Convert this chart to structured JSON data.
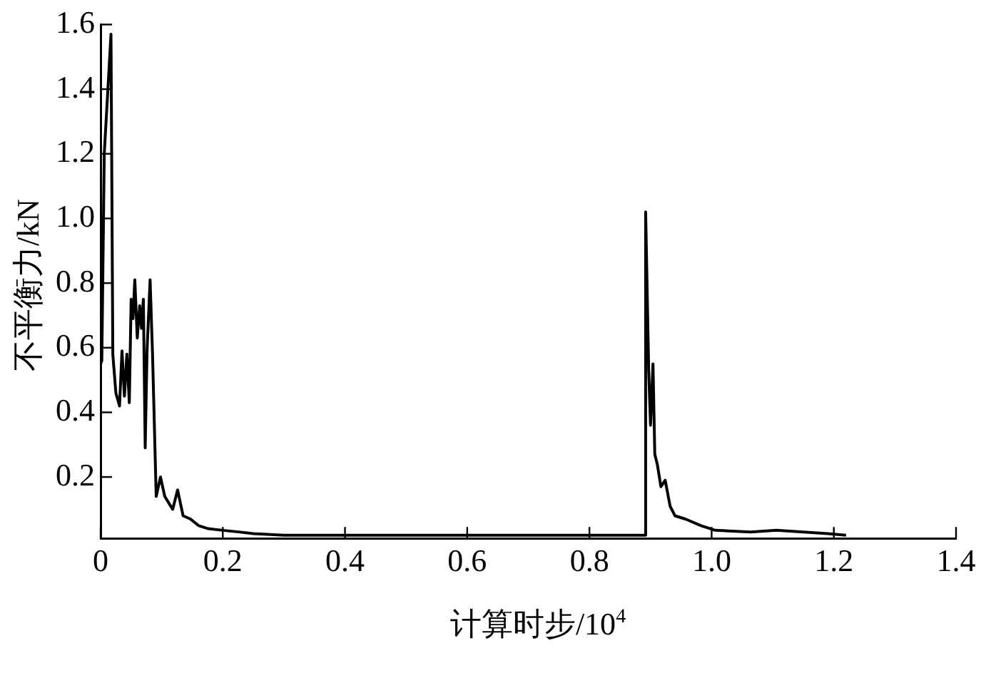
{
  "chart_data": {
    "type": "line",
    "xlabel": "计算时步/10$^{4}$",
    "ylabel": "不平衡力/kN",
    "x": [
      0,
      0.002,
      0.006,
      0.017,
      0.02,
      0.025,
      0.031,
      0.035,
      0.039,
      0.043,
      0.047,
      0.05,
      0.053,
      0.056,
      0.06,
      0.064,
      0.067,
      0.07,
      0.073,
      0.076,
      0.081,
      0.085,
      0.091,
      0.098,
      0.105,
      0.118,
      0.126,
      0.135,
      0.147,
      0.16,
      0.176,
      0.2,
      0.226,
      0.25,
      0.3,
      0.4,
      0.6,
      0.8,
      0.891,
      0.892,
      0.897,
      0.9,
      0.904,
      0.907,
      0.911,
      0.917,
      0.924,
      0.932,
      0.94,
      0.957,
      0.982,
      1.006,
      1.064,
      1.106,
      1.19,
      1.22
    ],
    "series": [
      {
        "color": "#000000",
        "values": [
          0.55,
          0.56,
          1.2,
          1.57,
          0.58,
          0.46,
          0.42,
          0.59,
          0.45,
          0.58,
          0.43,
          0.75,
          0.69,
          0.81,
          0.63,
          0.73,
          0.66,
          0.75,
          0.29,
          0.59,
          0.81,
          0.58,
          0.14,
          0.2,
          0.14,
          0.1,
          0.16,
          0.08,
          0.07,
          0.05,
          0.04,
          0.035,
          0.03,
          0.025,
          0.02,
          0.02,
          0.02,
          0.02,
          0.02,
          1.02,
          0.53,
          0.36,
          0.55,
          0.27,
          0.24,
          0.17,
          0.19,
          0.11,
          0.08,
          0.07,
          0.05,
          0.035,
          0.03,
          0.035,
          0.025,
          0.02
        ]
      }
    ],
    "xlim": [
      0,
      1.4
    ],
    "xticks": [
      0,
      0.2,
      0.4,
      0.6,
      0.8,
      {
        "value": 1.0,
        "label": "1.0"
      },
      1.2,
      1.4
    ],
    "ylim": [
      0.01,
      1.6
    ],
    "yticks": [
      0.2,
      0.4,
      0.6,
      0.8,
      {
        "value": 1.0,
        "label": "1.0"
      },
      1.2,
      1.4,
      1.6
    ],
    "grid": false,
    "legend": false,
    "marker": "none",
    "line_style": "solid"
  }
}
